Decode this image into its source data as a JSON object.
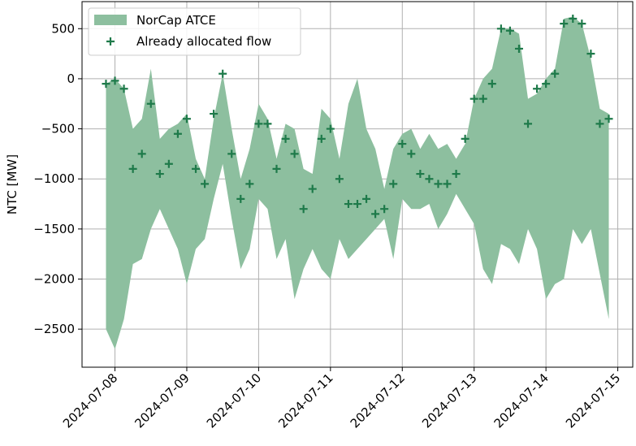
{
  "chart_data": {
    "type": "band_scatter",
    "ylabel": "NTC [MW]",
    "x": [
      "2024-07-07T21:00",
      "2024-07-08T00:00",
      "2024-07-08T03:00",
      "2024-07-08T06:00",
      "2024-07-08T09:00",
      "2024-07-08T12:00",
      "2024-07-08T15:00",
      "2024-07-08T18:00",
      "2024-07-08T21:00",
      "2024-07-09T00:00",
      "2024-07-09T03:00",
      "2024-07-09T06:00",
      "2024-07-09T09:00",
      "2024-07-09T12:00",
      "2024-07-09T15:00",
      "2024-07-09T18:00",
      "2024-07-09T21:00",
      "2024-07-10T00:00",
      "2024-07-10T03:00",
      "2024-07-10T06:00",
      "2024-07-10T09:00",
      "2024-07-10T12:00",
      "2024-07-10T15:00",
      "2024-07-10T18:00",
      "2024-07-10T21:00",
      "2024-07-11T00:00",
      "2024-07-11T03:00",
      "2024-07-11T06:00",
      "2024-07-11T09:00",
      "2024-07-11T12:00",
      "2024-07-11T15:00",
      "2024-07-11T18:00",
      "2024-07-11T21:00",
      "2024-07-12T00:00",
      "2024-07-12T03:00",
      "2024-07-12T06:00",
      "2024-07-12T09:00",
      "2024-07-12T12:00",
      "2024-07-12T15:00",
      "2024-07-12T18:00",
      "2024-07-12T21:00",
      "2024-07-13T00:00",
      "2024-07-13T03:00",
      "2024-07-13T06:00",
      "2024-07-13T09:00",
      "2024-07-13T12:00",
      "2024-07-13T15:00",
      "2024-07-13T18:00",
      "2024-07-13T21:00",
      "2024-07-14T00:00",
      "2024-07-14T03:00",
      "2024-07-14T06:00",
      "2024-07-14T09:00",
      "2024-07-14T12:00",
      "2024-07-14T15:00",
      "2024-07-14T18:00",
      "2024-07-14T21:00"
    ],
    "band": {
      "name": "NorCap ATCE",
      "color": "#8dbf9f",
      "upper": [
        -50,
        0,
        -100,
        -500,
        -400,
        100,
        -600,
        -500,
        -450,
        -350,
        -800,
        -1000,
        -400,
        50,
        -500,
        -1000,
        -700,
        -250,
        -400,
        -800,
        -450,
        -500,
        -900,
        -950,
        -300,
        -400,
        -800,
        -250,
        0,
        -500,
        -700,
        -1100,
        -700,
        -550,
        -500,
        -700,
        -550,
        -700,
        -650,
        -800,
        -650,
        -200,
        0,
        100,
        500,
        500,
        450,
        -200,
        -150,
        0,
        100,
        600,
        620,
        550,
        200,
        -300,
        -350
      ],
      "lower": [
        -2500,
        -2700,
        -2400,
        -1850,
        -1800,
        -1500,
        -1300,
        -1500,
        -1700,
        -2050,
        -1700,
        -1600,
        -1200,
        -850,
        -1400,
        -1900,
        -1700,
        -1200,
        -1300,
        -1800,
        -1600,
        -2200,
        -1900,
        -1700,
        -1900,
        -2000,
        -1600,
        -1800,
        -1700,
        -1600,
        -1500,
        -1400,
        -1800,
        -1200,
        -1300,
        -1300,
        -1250,
        -1500,
        -1350,
        -1150,
        -1300,
        -1450,
        -1900,
        -2050,
        -1650,
        -1700,
        -1850,
        -1500,
        -1700,
        -2200,
        -2050,
        -2000,
        -1500,
        -1650,
        -1500,
        -1950,
        -2400
      ]
    },
    "series": [
      {
        "name": "Already allocated flow",
        "color": "#1e7a4a",
        "values": [
          -50,
          -20,
          -100,
          -900,
          -750,
          -250,
          -950,
          -850,
          -550,
          -400,
          -900,
          -1050,
          -350,
          50,
          -750,
          -1200,
          -1050,
          -450,
          -450,
          -900,
          -600,
          -750,
          -1300,
          -1100,
          -600,
          -500,
          -1000,
          -1250,
          -1250,
          -1200,
          -1350,
          -1300,
          -1050,
          -650,
          -750,
          -950,
          -1000,
          -1050,
          -1050,
          -950,
          -600,
          -200,
          -200,
          -50,
          500,
          480,
          300,
          -450,
          -100,
          -50,
          50,
          550,
          600,
          550,
          250,
          -450,
          -400
        ]
      }
    ],
    "xlim": [
      "2024-07-07T13:00",
      "2024-07-15T05:00"
    ],
    "xticks": [
      "2024-07-08",
      "2024-07-09",
      "2024-07-10",
      "2024-07-11",
      "2024-07-12",
      "2024-07-13",
      "2024-07-14",
      "2024-07-15"
    ],
    "ylim": [
      -2880,
      770
    ],
    "yticks": [
      {
        "value": -2500,
        "label": "−2500"
      },
      {
        "value": -2000,
        "label": "−2000"
      },
      {
        "value": -1500,
        "label": "−1500"
      },
      {
        "value": -1000,
        "label": "−1000"
      },
      {
        "value": -500,
        "label": "−500"
      },
      0,
      500
    ],
    "grid": true,
    "legend": "upper left"
  }
}
